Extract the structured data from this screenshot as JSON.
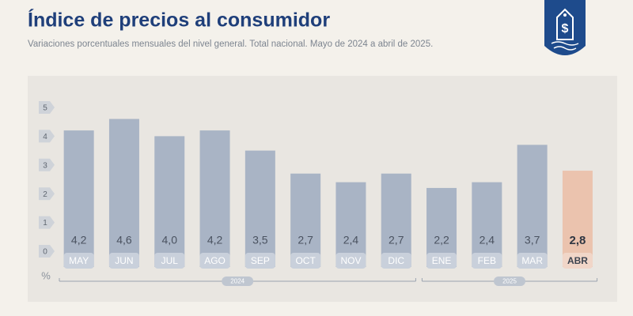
{
  "chart_data": {
    "type": "bar",
    "title": "Índice de precios al consumidor",
    "subtitle": "Variaciones porcentuales mensuales del nivel general. Total nacional. Mayo de 2024 a abril de 2025.",
    "unit": "%",
    "categories": [
      "MAY",
      "JUN",
      "JUL",
      "AGO",
      "SEP",
      "OCT",
      "NOV",
      "DIC",
      "ENE",
      "FEB",
      "MAR",
      "ABR"
    ],
    "values": [
      4.2,
      4.6,
      4.0,
      4.2,
      3.5,
      2.7,
      2.4,
      2.7,
      2.2,
      2.4,
      3.7,
      2.8
    ],
    "value_labels": [
      "4,2",
      "4,6",
      "4,0",
      "4,2",
      "3,5",
      "2,7",
      "2,4",
      "2,7",
      "2,2",
      "2,4",
      "3,7",
      "2,8"
    ],
    "colors": [
      "#a9b4c5",
      "#a9b4c5",
      "#a9b4c5",
      "#a9b4c5",
      "#a9b4c5",
      "#a9b4c5",
      "#a9b4c5",
      "#a9b4c5",
      "#a9b4c5",
      "#a9b4c5",
      "#a9b4c5",
      "#ebc3ae"
    ],
    "groups": [
      {
        "label": "2024",
        "count": 8
      },
      {
        "label": "2025",
        "count": 4
      }
    ],
    "ylim": [
      0,
      5
    ],
    "yticks": [
      0,
      1,
      2,
      3,
      4,
      5
    ]
  }
}
